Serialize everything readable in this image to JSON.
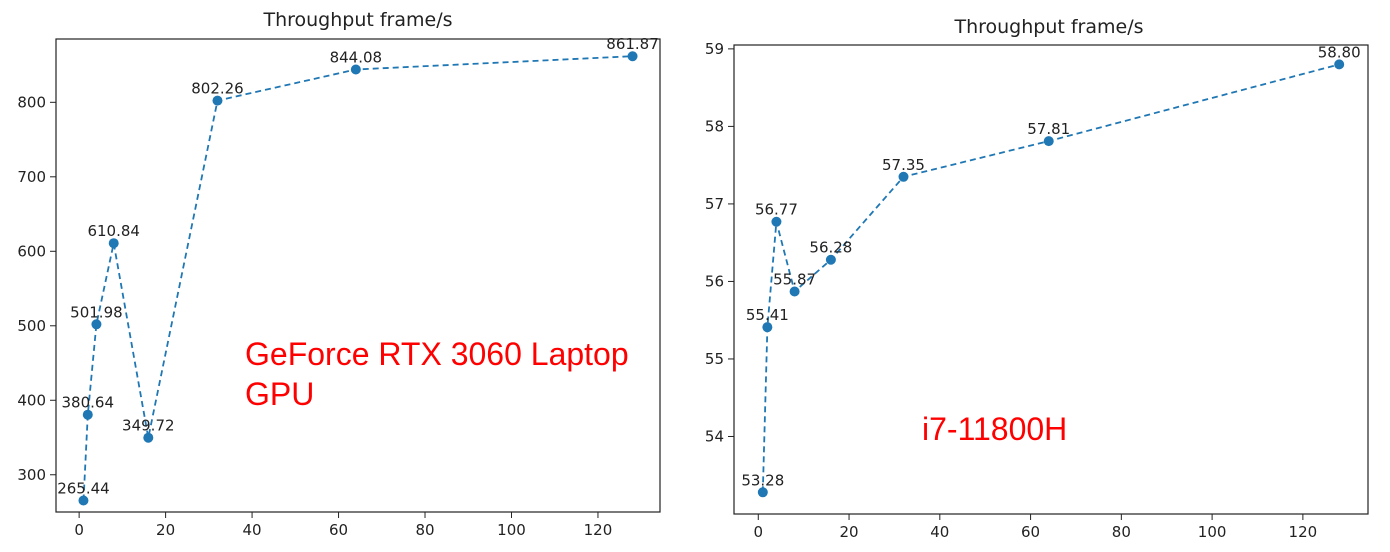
{
  "chart_data": [
    {
      "type": "line",
      "title": "Throughput frame/s",
      "xlabel": "",
      "ylabel": "",
      "xlim": [
        -5.35,
        134.35
      ],
      "ylim": [
        250,
        885
      ],
      "xticks": [
        0,
        20,
        40,
        60,
        80,
        100,
        120
      ],
      "yticks": [
        300,
        400,
        500,
        600,
        700,
        800
      ],
      "grid": false,
      "line_style": "dashed",
      "marker": "circle",
      "color": "#1f77b4",
      "series": [
        {
          "x": [
            1,
            2,
            4,
            8,
            16,
            32,
            64,
            128
          ],
          "y": [
            265.44,
            380.64,
            501.98,
            610.84,
            349.72,
            802.26,
            844.08,
            861.87
          ],
          "labels": [
            "265.44",
            "380.64",
            "501.98",
            "610.84",
            "349.72",
            "802.26",
            "844.08",
            "861.87"
          ]
        }
      ],
      "annotation": {
        "lines": [
          "GeForce RTX 3060 Laptop",
          "GPU"
        ],
        "color": "#ff0000"
      }
    },
    {
      "type": "line",
      "title": "Throughput frame/s",
      "xlabel": "",
      "ylabel": "",
      "xlim": [
        -5.35,
        134.35
      ],
      "ylim": [
        53.0,
        59.05
      ],
      "xticks": [
        0,
        20,
        40,
        60,
        80,
        100,
        120
      ],
      "yticks": [
        54,
        55,
        56,
        57,
        58,
        59
      ],
      "grid": false,
      "line_style": "dashed",
      "marker": "circle",
      "color": "#1f77b4",
      "series": [
        {
          "x": [
            1,
            2,
            4,
            8,
            16,
            32,
            64,
            128
          ],
          "y": [
            53.28,
            55.41,
            56.77,
            55.87,
            56.28,
            57.35,
            57.81,
            58.8
          ],
          "labels": [
            "53.28",
            "55.41",
            "56.77",
            "55.87",
            "56.28",
            "57.35",
            "57.81",
            "58.80"
          ]
        }
      ],
      "annotation": {
        "lines": [
          "i7-11800H"
        ],
        "color": "#ff0000"
      }
    }
  ]
}
